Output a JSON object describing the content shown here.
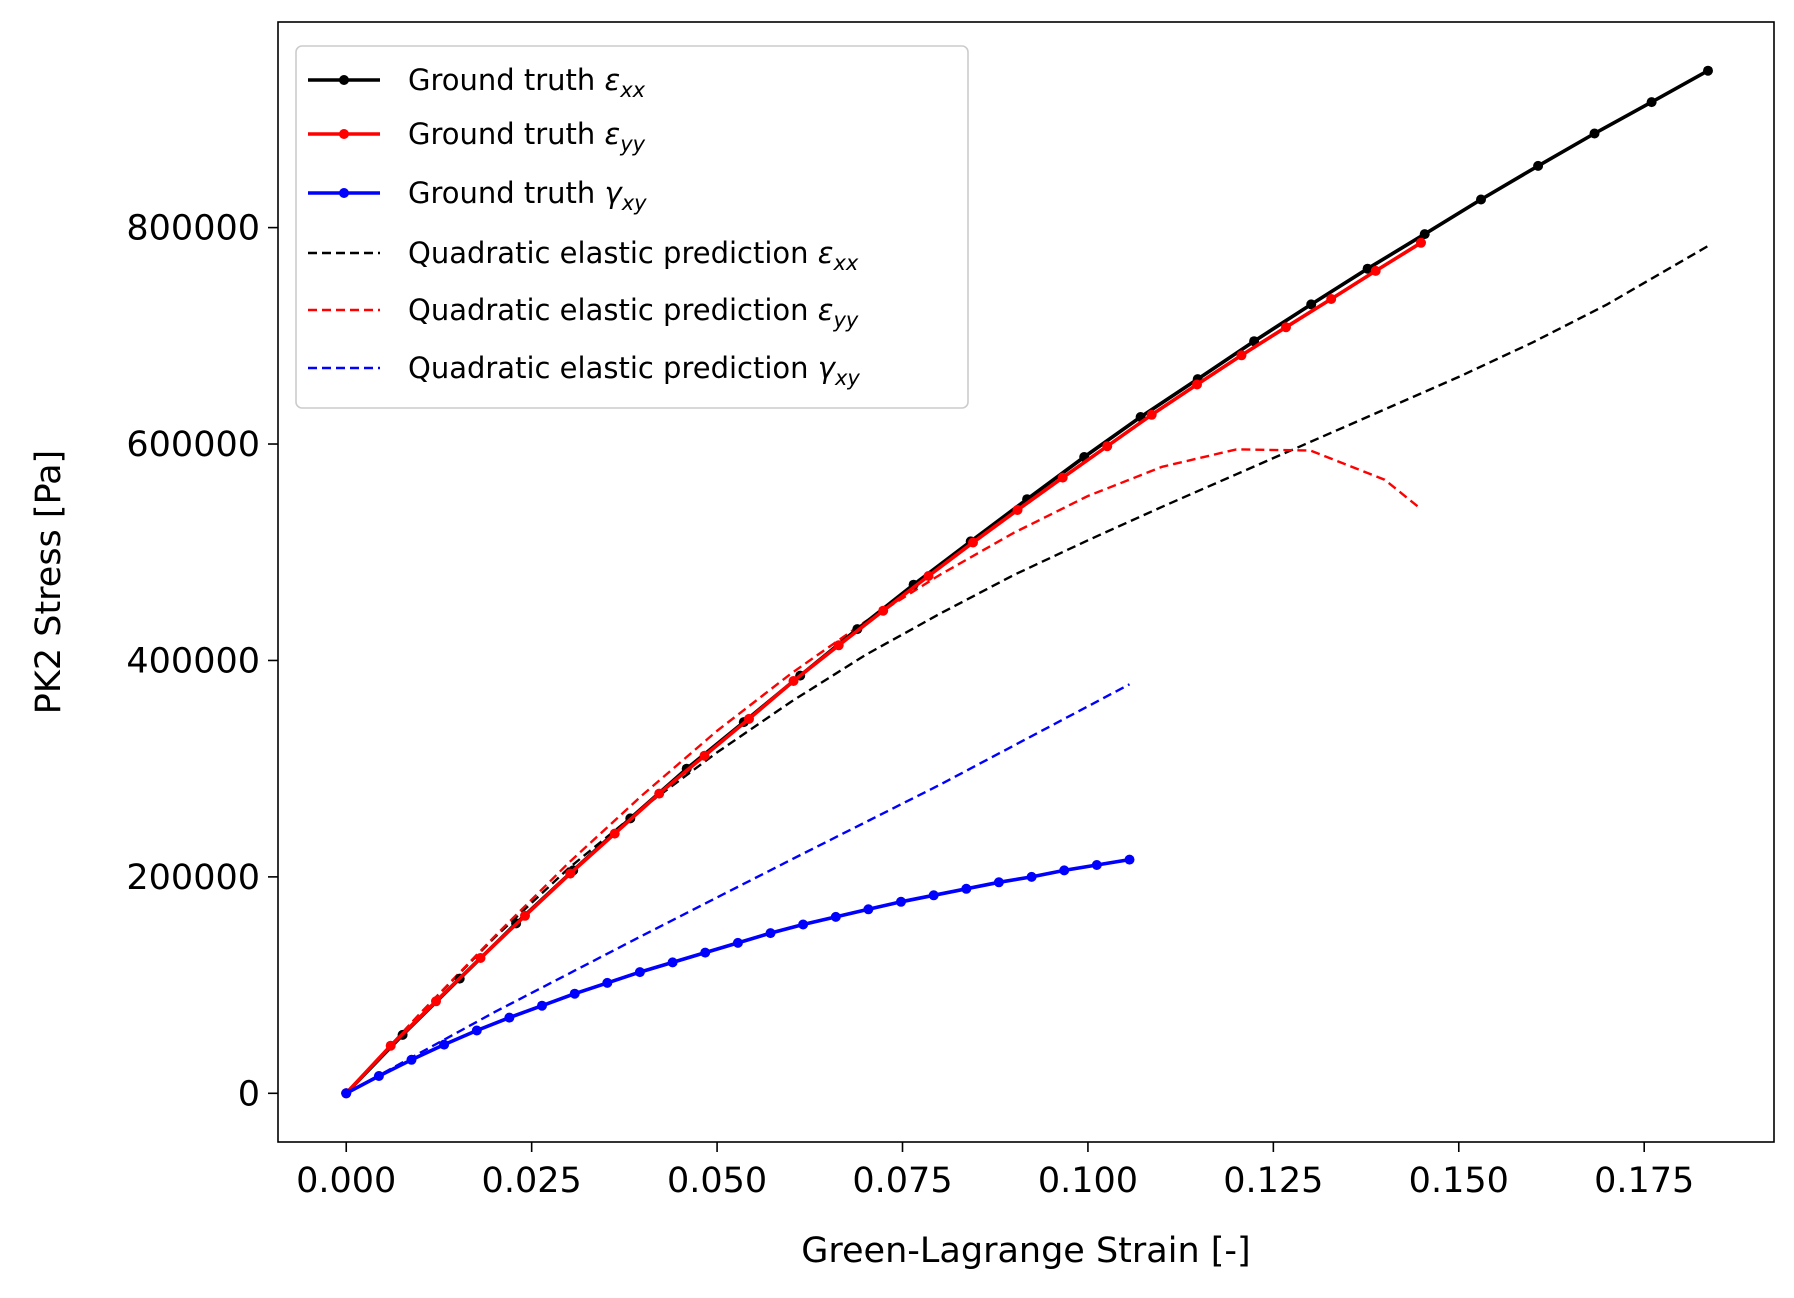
{
  "chart_data": {
    "type": "line",
    "xlabel": "Green-Lagrange Strain [-]",
    "ylabel": "PK2 Stress [Pa]",
    "xlim": [
      -0.0092,
      0.1925
    ],
    "ylim": [
      -45000,
      990000
    ],
    "xticks": [
      0.0,
      0.025,
      0.05,
      0.075,
      0.1,
      0.125,
      0.15,
      0.175
    ],
    "xtick_labels": [
      "0.000",
      "0.025",
      "0.050",
      "0.075",
      "0.100",
      "0.125",
      "0.150",
      "0.175"
    ],
    "yticks": [
      0,
      200000,
      400000,
      600000,
      800000
    ],
    "ytick_labels": [
      "0",
      "200000",
      "400000",
      "600000",
      "800000"
    ],
    "grid": false,
    "legend_position": "top-left",
    "series": [
      {
        "name": "Ground truth",
        "subscript": "xx",
        "symbol": "ε",
        "style": "solid-markers",
        "color": "#000000",
        "x": [
          0.0,
          0.0076,
          0.0153,
          0.0229,
          0.0306,
          0.0383,
          0.0459,
          0.0536,
          0.0612,
          0.0689,
          0.0765,
          0.0842,
          0.0918,
          0.0995,
          0.1071,
          0.1148,
          0.1224,
          0.1301,
          0.1377,
          0.1454,
          0.153,
          0.1607,
          0.1683,
          0.176,
          0.1836
        ],
        "y": [
          0,
          54000,
          106000,
          157000,
          206000,
          254000,
          300000,
          343000,
          386000,
          429000,
          470000,
          510000,
          549000,
          588000,
          625000,
          660000,
          695000,
          729000,
          762000,
          794000,
          826000,
          857000,
          887000,
          916000,
          945000
        ]
      },
      {
        "name": "Ground truth",
        "subscript": "yy",
        "symbol": "ε",
        "style": "solid-markers",
        "color": "#ff0000",
        "x": [
          0.0,
          0.006,
          0.0121,
          0.0181,
          0.0241,
          0.0302,
          0.0362,
          0.0422,
          0.0483,
          0.0543,
          0.0603,
          0.0664,
          0.0724,
          0.0785,
          0.0845,
          0.0905,
          0.0966,
          0.1026,
          0.1086,
          0.1147,
          0.1207,
          0.1267,
          0.1328,
          0.1388,
          0.1449
        ],
        "y": [
          0,
          44000,
          85000,
          125000,
          164000,
          203000,
          240000,
          277000,
          312000,
          346000,
          381000,
          414000,
          446000,
          478000,
          509000,
          539000,
          569000,
          598000,
          627000,
          655000,
          682000,
          708000,
          734000,
          760000,
          786000
        ]
      },
      {
        "name": "Ground truth",
        "subscript": "xy",
        "symbol": "γ",
        "style": "solid-markers",
        "color": "#0000ff",
        "x": [
          0.0,
          0.0044,
          0.0088,
          0.0132,
          0.0176,
          0.022,
          0.0264,
          0.0308,
          0.0352,
          0.0396,
          0.044,
          0.0484,
          0.0528,
          0.0572,
          0.0616,
          0.066,
          0.0704,
          0.0748,
          0.0792,
          0.0836,
          0.088,
          0.0924,
          0.0968,
          0.1012,
          0.1056
        ],
        "y": [
          0,
          16000,
          31000,
          45000,
          58000,
          70000,
          81000,
          92000,
          102000,
          112000,
          121000,
          130000,
          139000,
          148000,
          156000,
          163000,
          170000,
          177000,
          183000,
          189000,
          195000,
          200000,
          206000,
          211000,
          216000
        ]
      },
      {
        "name": "Quadratic elastic prediction",
        "subscript": "xx",
        "symbol": "ε",
        "style": "dashed",
        "color": "#000000",
        "x": [
          0.0,
          0.01,
          0.02,
          0.03,
          0.04,
          0.05,
          0.06,
          0.07,
          0.08,
          0.09,
          0.1,
          0.11,
          0.12,
          0.13,
          0.14,
          0.15,
          0.16,
          0.17,
          0.1836
        ],
        "y": [
          0,
          74000,
          144000,
          208000,
          264000,
          315000,
          362000,
          405000,
          443000,
          479000,
          511000,
          542000,
          572000,
          602000,
          632000,
          662000,
          694000,
          729000,
          783000
        ]
      },
      {
        "name": "Quadratic elastic prediction",
        "subscript": "yy",
        "symbol": "ε",
        "style": "dashed",
        "color": "#ff0000",
        "x": [
          0.0,
          0.01,
          0.02,
          0.03,
          0.04,
          0.05,
          0.06,
          0.07,
          0.08,
          0.09,
          0.1,
          0.11,
          0.12,
          0.13,
          0.14,
          0.1449
        ],
        "y": [
          0,
          74000,
          145000,
          213000,
          276000,
          335000,
          388000,
          436000,
          479000,
          518000,
          552000,
          579000,
          595000,
          594000,
          567000,
          540000
        ]
      },
      {
        "name": "Quadratic elastic prediction",
        "subscript": "xy",
        "symbol": "γ",
        "style": "dashed",
        "color": "#0000ff",
        "x": [
          0.0,
          0.02,
          0.04,
          0.06,
          0.08,
          0.1056
        ],
        "y": [
          0,
          75000,
          146000,
          216000,
          285000,
          378000
        ]
      }
    ]
  }
}
